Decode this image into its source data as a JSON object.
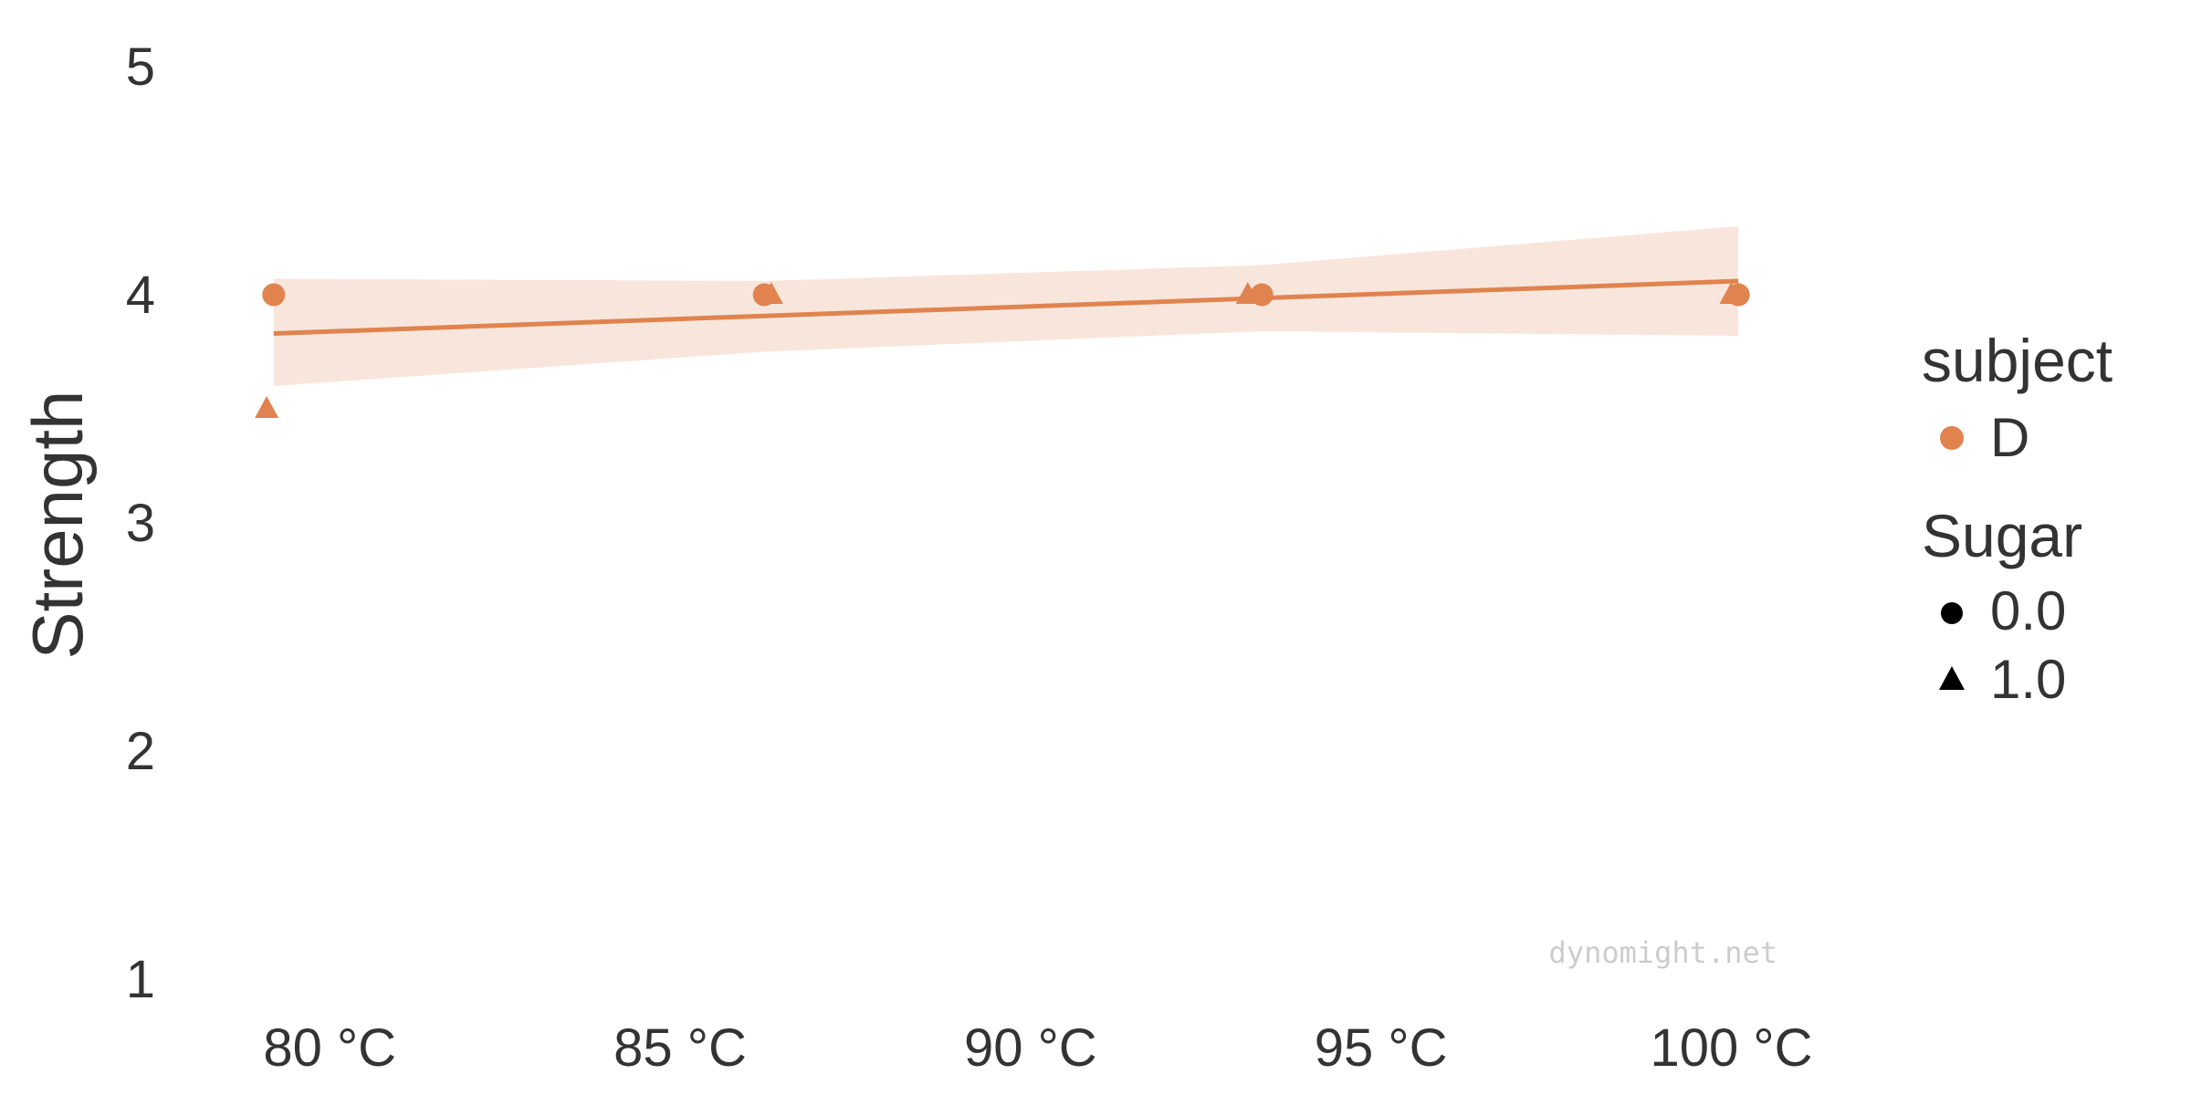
{
  "chart_data": {
    "type": "scatter",
    "ylabel": "Strength",
    "xlabel": "",
    "xlim": [
      77.9,
      102.0
    ],
    "ylim": [
      1,
      5
    ],
    "x_ticks": [
      80,
      85,
      90,
      95,
      100
    ],
    "x_tick_labels": [
      "80 °C",
      "85 °C",
      "90 °C",
      "95 °C",
      "100 °C"
    ],
    "y_ticks": [
      1,
      2,
      3,
      4,
      5
    ],
    "y_tick_labels": [
      "1",
      "2",
      "3",
      "4",
      "5"
    ],
    "color": "#e0834f",
    "band_color": "#f8e6dc",
    "points": [
      {
        "x": 79.2,
        "y": 4.0,
        "sugar": "0.0"
      },
      {
        "x": 79.1,
        "y": 3.5,
        "sugar": "1.0"
      },
      {
        "x": 86.2,
        "y": 4.0,
        "sugar": "0.0"
      },
      {
        "x": 86.3,
        "y": 4.0,
        "sugar": "1.0"
      },
      {
        "x": 93.1,
        "y": 4.0,
        "sugar": "1.0"
      },
      {
        "x": 93.3,
        "y": 4.0,
        "sugar": "0.0"
      },
      {
        "x": 100.1,
        "y": 4.0,
        "sugar": "0.0"
      },
      {
        "x": 100.0,
        "y": 4.0,
        "sugar": "1.0"
      }
    ],
    "fit_line": {
      "x": [
        79.2,
        100.1
      ],
      "y": [
        3.83,
        4.06
      ]
    },
    "confidence_band": {
      "x": [
        79.2,
        86.2,
        93.3,
        100.1
      ],
      "upper": [
        4.07,
        4.06,
        4.13,
        4.3
      ],
      "lower": [
        3.6,
        3.75,
        3.84,
        3.82
      ]
    },
    "legend": {
      "placement": "right",
      "subject_title": "subject",
      "subject_entries": [
        {
          "label": "D"
        }
      ],
      "sugar_title": "Sugar",
      "sugar_entries": [
        {
          "label": "0.0",
          "shape": "circle"
        },
        {
          "label": "1.0",
          "shape": "triangle"
        }
      ]
    },
    "watermark": "dynomight.net"
  }
}
